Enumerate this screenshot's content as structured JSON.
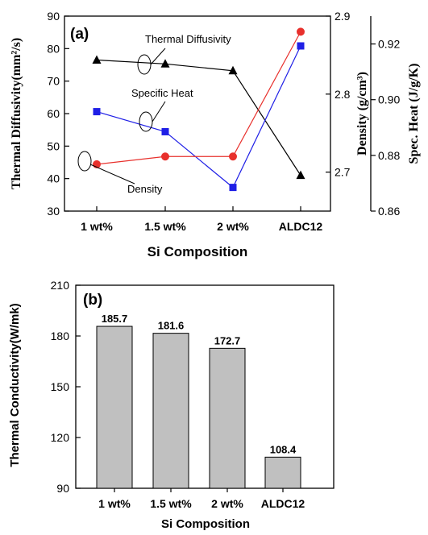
{
  "chart_data": [
    {
      "type": "line",
      "panel_label": "(a)",
      "categories": [
        "1 wt%",
        "1.5 wt%",
        "2 wt%",
        "ALDC12"
      ],
      "xlabel": "Si Composition",
      "axes": {
        "left": {
          "label": "Thermal Diffusivity(mm²/s)",
          "ylim": [
            30,
            90
          ],
          "ticks": [
            30,
            40,
            50,
            60,
            70,
            80,
            90
          ]
        },
        "right_inner": {
          "label": "Density (g/cm³)",
          "ylim": [
            2.65,
            2.9
          ],
          "ticks": [
            2.7,
            2.8,
            2.9
          ]
        },
        "right_outer": {
          "label": "Spec. Heat (J/g/K)",
          "ylim": [
            0.86,
            0.93
          ],
          "ticks": [
            0.86,
            0.88,
            0.9,
            0.92
          ]
        }
      },
      "series": [
        {
          "name": "Thermal Diffusivity",
          "axis": "left",
          "values": [
            76.5,
            75.3,
            73.2,
            41.0
          ],
          "color": "#000000",
          "marker": "triangle"
        },
        {
          "name": "Specific Heat",
          "axis": "right_outer",
          "values": [
            0.8957,
            0.8885,
            0.8685,
            0.9193
          ],
          "color": "#1f1fe6",
          "marker": "square"
        },
        {
          "name": "Density",
          "axis": "right_inner",
          "values": [
            2.71,
            2.72,
            2.72,
            2.88
          ],
          "color": "#e8302c",
          "marker": "circle"
        }
      ],
      "grid": false
    },
    {
      "type": "bar",
      "panel_label": "(b)",
      "categories": [
        "1 wt%",
        "1.5 wt%",
        "2 wt%",
        "ALDC12"
      ],
      "values": [
        185.7,
        181.6,
        172.7,
        108.4
      ],
      "value_labels": [
        "185.7",
        "181.6",
        "172.7",
        "108.4"
      ],
      "xlabel": "Si Composition",
      "ylabel": "Thermal Conductivity(W/mk)",
      "ylim": [
        90,
        210
      ],
      "yticks": [
        90,
        120,
        150,
        180,
        210
      ],
      "bar_color": "#c0c0c0",
      "grid": false
    }
  ]
}
